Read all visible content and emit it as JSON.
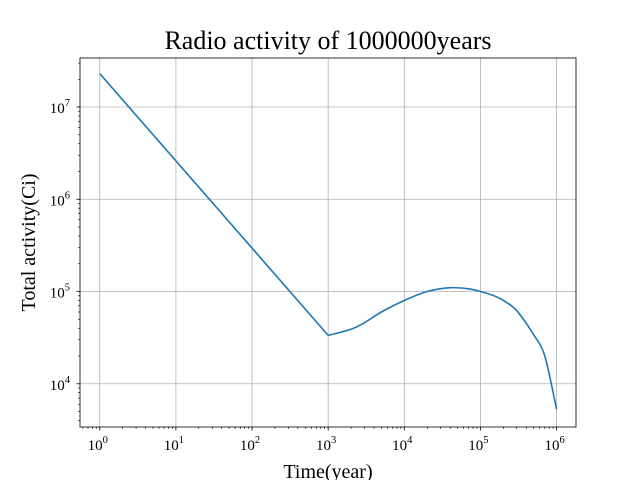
{
  "chart_data": {
    "type": "line",
    "title": "Radio activity of 1000000years",
    "xlabel": "Time(year)",
    "ylabel": "Total activity(Ci)",
    "x_scale": "log",
    "y_scale": "log",
    "grid": true,
    "xlim": [
      0.55,
      1800000
    ],
    "ylim": [
      3400,
      34000000
    ],
    "x_ticks": [
      {
        "value": 1,
        "base": "10",
        "exp": "0"
      },
      {
        "value": 10,
        "base": "10",
        "exp": "1"
      },
      {
        "value": 100,
        "base": "10",
        "exp": "2"
      },
      {
        "value": 1000,
        "base": "10",
        "exp": "3"
      },
      {
        "value": 10000,
        "base": "10",
        "exp": "4"
      },
      {
        "value": 100000,
        "base": "10",
        "exp": "5"
      },
      {
        "value": 1000000,
        "base": "10",
        "exp": "6"
      }
    ],
    "y_ticks": [
      {
        "value": 10000,
        "base": "10",
        "exp": "4"
      },
      {
        "value": 100000,
        "base": "10",
        "exp": "5"
      },
      {
        "value": 1000000,
        "base": "10",
        "exp": "6"
      },
      {
        "value": 10000000,
        "base": "10",
        "exp": "7"
      }
    ],
    "series": [
      {
        "color": "#1f77b4",
        "x": [
          1,
          1000,
          2000,
          3000,
          5000,
          10000,
          20000,
          40000,
          70000,
          100000,
          150000,
          200000,
          300000,
          500000,
          700000,
          1000000
        ],
        "y": [
          23000000,
          33500,
          39000,
          46000,
          60000,
          80000,
          100000,
          110000,
          107000,
          100000,
          90000,
          80000,
          62000,
          34000,
          20000,
          5300
        ]
      }
    ]
  }
}
